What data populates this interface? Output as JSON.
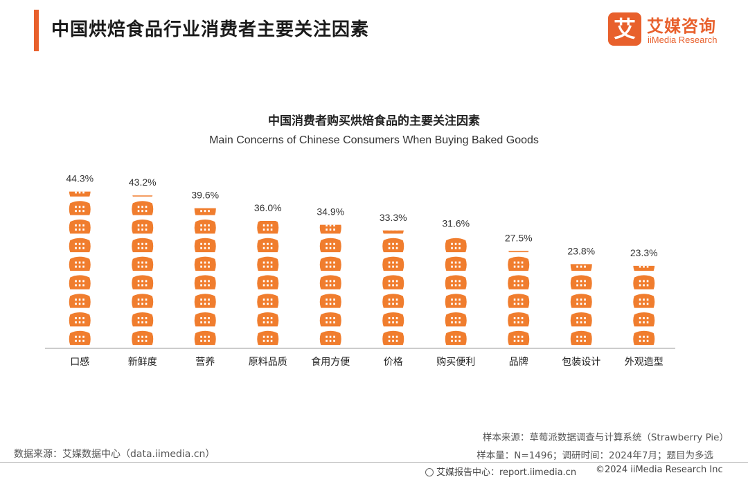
{
  "header": {
    "title": "中国烘焙食品行业消费者主要关注因素",
    "logo_mark": "艾",
    "logo_cn": "艾媒咨询",
    "logo_en": "iiMedia Research",
    "accent_color": "#e8602c"
  },
  "chart_data": {
    "type": "bar",
    "title": "中国消费者购买烘焙食品的主要关注因素",
    "subtitle": "Main Concerns of Chinese Consumers When Buying Baked Goods",
    "categories": [
      "口感",
      "新鲜度",
      "营养",
      "原料品质",
      "食用方便",
      "价格",
      "购买便利",
      "品牌",
      "包装设计",
      "外观造型"
    ],
    "values": [
      44.3,
      43.2,
      39.6,
      36.0,
      34.9,
      33.3,
      31.6,
      27.5,
      23.8,
      23.3
    ],
    "value_labels": [
      "44.3%",
      "43.2%",
      "39.6%",
      "36.0%",
      "34.9%",
      "33.3%",
      "31.6%",
      "27.5%",
      "23.8%",
      "23.3%"
    ],
    "unit": "%",
    "ylim": [
      0,
      45
    ],
    "grid": false,
    "bar_color": "#f07d2e",
    "bar_style": "pictorial-bread-stack"
  },
  "footer": {
    "data_source": "数据来源：艾媒数据中心（data.iimedia.cn）",
    "sample_source": "样本来源：草莓派数据调查与计算系统（Strawberry Pie）",
    "sample_size": "样本量：N=1496；调研时间：2024年7月；题目为多选",
    "report_center": "艾媒报告中心：report.iimedia.cn",
    "copyright": "©2024 iiMedia Research Inc"
  }
}
